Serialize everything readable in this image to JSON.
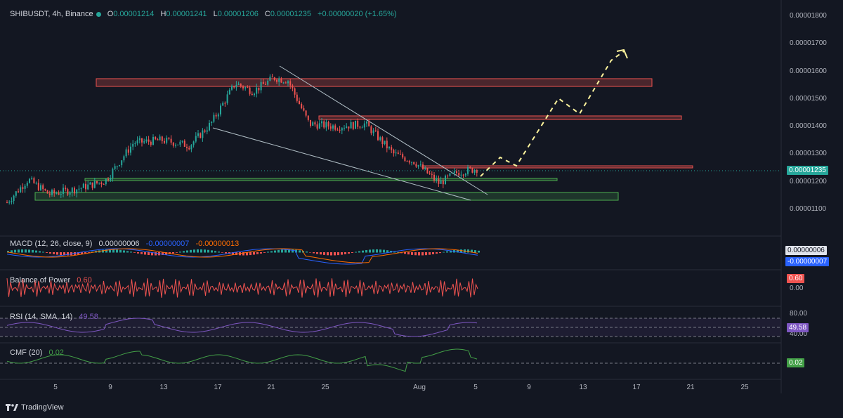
{
  "header": {
    "symbol": "SHIBUSDT, 4h, Binance",
    "open_label": "O",
    "open": "0.00001214",
    "high_label": "H",
    "high": "0.00001241",
    "low_label": "L",
    "low": "0.00001206",
    "close_label": "C",
    "close": "0.00001235",
    "change": "+0.00000020 (+1.65%)"
  },
  "price_axis": {
    "ticks": [
      "0.00001800",
      "0.00001700",
      "0.00001600",
      "0.00001500",
      "0.00001400",
      "0.00001300",
      "0.00001200",
      "0.00001100"
    ],
    "last_price_badge": "0.00001235",
    "last_price_color": "#26a69a"
  },
  "indicators": {
    "macd": {
      "label": "MACD (12, 26, close, 9)",
      "v1": "0.00000006",
      "v2": "-0.00000007",
      "v3": "-0.00000013",
      "badge1": "0.00000006",
      "badge2": "-0.00000007"
    },
    "bop": {
      "label": "Balance of Power",
      "value": "0.60",
      "badge": "0.60",
      "zero": "0.00"
    },
    "rsi": {
      "label": "RSI (14, SMA, 14)",
      "value": "49.58",
      "upper": "80.00",
      "badge": "49.58",
      "lower": "40.00"
    },
    "cmf": {
      "label": "CMF (20)",
      "value": "0.02",
      "badge": "0.02"
    }
  },
  "time_axis": [
    "5",
    "9",
    "13",
    "17",
    "21",
    "25",
    "Aug",
    "5",
    "9",
    "13",
    "17",
    "21",
    "25"
  ],
  "footer": {
    "brand": "TradingView"
  },
  "colors": {
    "up": "#26a69a",
    "down": "#ef5350",
    "background": "#131722",
    "resistance": "#ef5350",
    "support": "#4caf50",
    "rsi": "#7e57c2",
    "macd": "#2962ff",
    "signal": "#ff6d00",
    "cmf": "#43a047",
    "projection": "#fff59d"
  }
}
